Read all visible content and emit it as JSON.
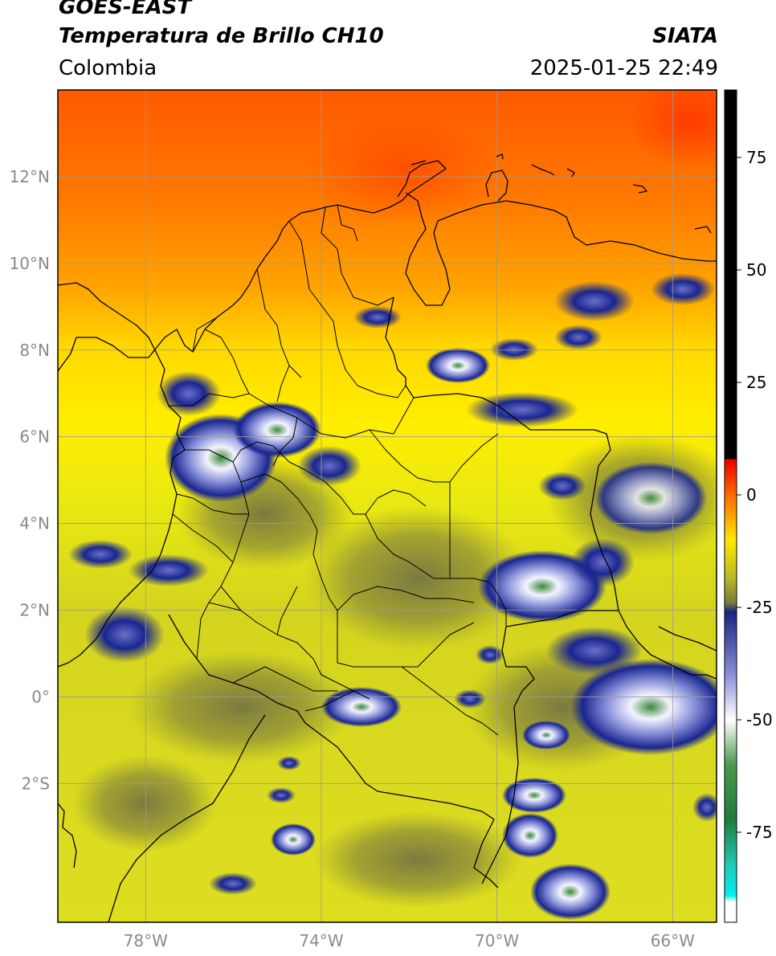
{
  "header": {
    "satellite": "GOES-EAST",
    "product": "Temperatura de Brillo CH10",
    "region": "Colombia",
    "agency": "SIATA",
    "datetime": "2025-01-25 22:49"
  },
  "map": {
    "extent": {
      "lon_min": -80.0,
      "lon_max": -65.0,
      "lat_min": -5.2,
      "lat_max": 14.0
    },
    "longitude_ticks": [
      {
        "value": -78,
        "label": "78°W"
      },
      {
        "value": -74,
        "label": "74°W"
      },
      {
        "value": -70,
        "label": "70°W"
      },
      {
        "value": -66,
        "label": "66°W"
      }
    ],
    "latitude_ticks": [
      {
        "value": 12,
        "label": "12°N"
      },
      {
        "value": 10,
        "label": "10°N"
      },
      {
        "value": 8,
        "label": "8°N"
      },
      {
        "value": 6,
        "label": "6°N"
      },
      {
        "value": 4,
        "label": "4°N"
      },
      {
        "value": 2,
        "label": "2°N"
      },
      {
        "value": 0,
        "label": "0°"
      },
      {
        "value": -2,
        "label": "2°S"
      }
    ],
    "gridlines": true,
    "colors": {
      "warm_north": "#ff7800",
      "mid_band": "#ffe600",
      "south_base": "#d6d61e",
      "cloud_blue": "#1a2690",
      "cloud_white": "#f2f2ff",
      "cloud_green": "#2e8b3a",
      "borders": "#000000"
    }
  },
  "colorbar": {
    "min": -95,
    "max": 90,
    "ticks": [
      {
        "value": 75,
        "label": "75"
      },
      {
        "value": 50,
        "label": "50"
      },
      {
        "value": 25,
        "label": "25"
      },
      {
        "value": 0,
        "label": "0"
      },
      {
        "value": -25,
        "label": "-25"
      },
      {
        "value": -50,
        "label": "-50"
      },
      {
        "value": -75,
        "label": "-75"
      }
    ],
    "stops": [
      {
        "value": 90,
        "color": "#000000"
      },
      {
        "value": 8,
        "color": "#000000"
      },
      {
        "value": 7.9,
        "color": "#e60000"
      },
      {
        "value": 0,
        "color": "#ff6a00"
      },
      {
        "value": -10,
        "color": "#ffe600"
      },
      {
        "value": -18,
        "color": "#bdbd20"
      },
      {
        "value": -24,
        "color": "#7a7a40"
      },
      {
        "value": -26,
        "color": "#1a2380"
      },
      {
        "value": -40,
        "color": "#8a90d8"
      },
      {
        "value": -50,
        "color": "#ffffff"
      },
      {
        "value": -60,
        "color": "#4c9a4c"
      },
      {
        "value": -72,
        "color": "#1e7d3a"
      },
      {
        "value": -82,
        "color": "#20c8b0"
      },
      {
        "value": -89,
        "color": "#00f0f0"
      },
      {
        "value": -90.5,
        "color": "#ffffff"
      },
      {
        "value": -95,
        "color": "#ffffff"
      }
    ]
  }
}
